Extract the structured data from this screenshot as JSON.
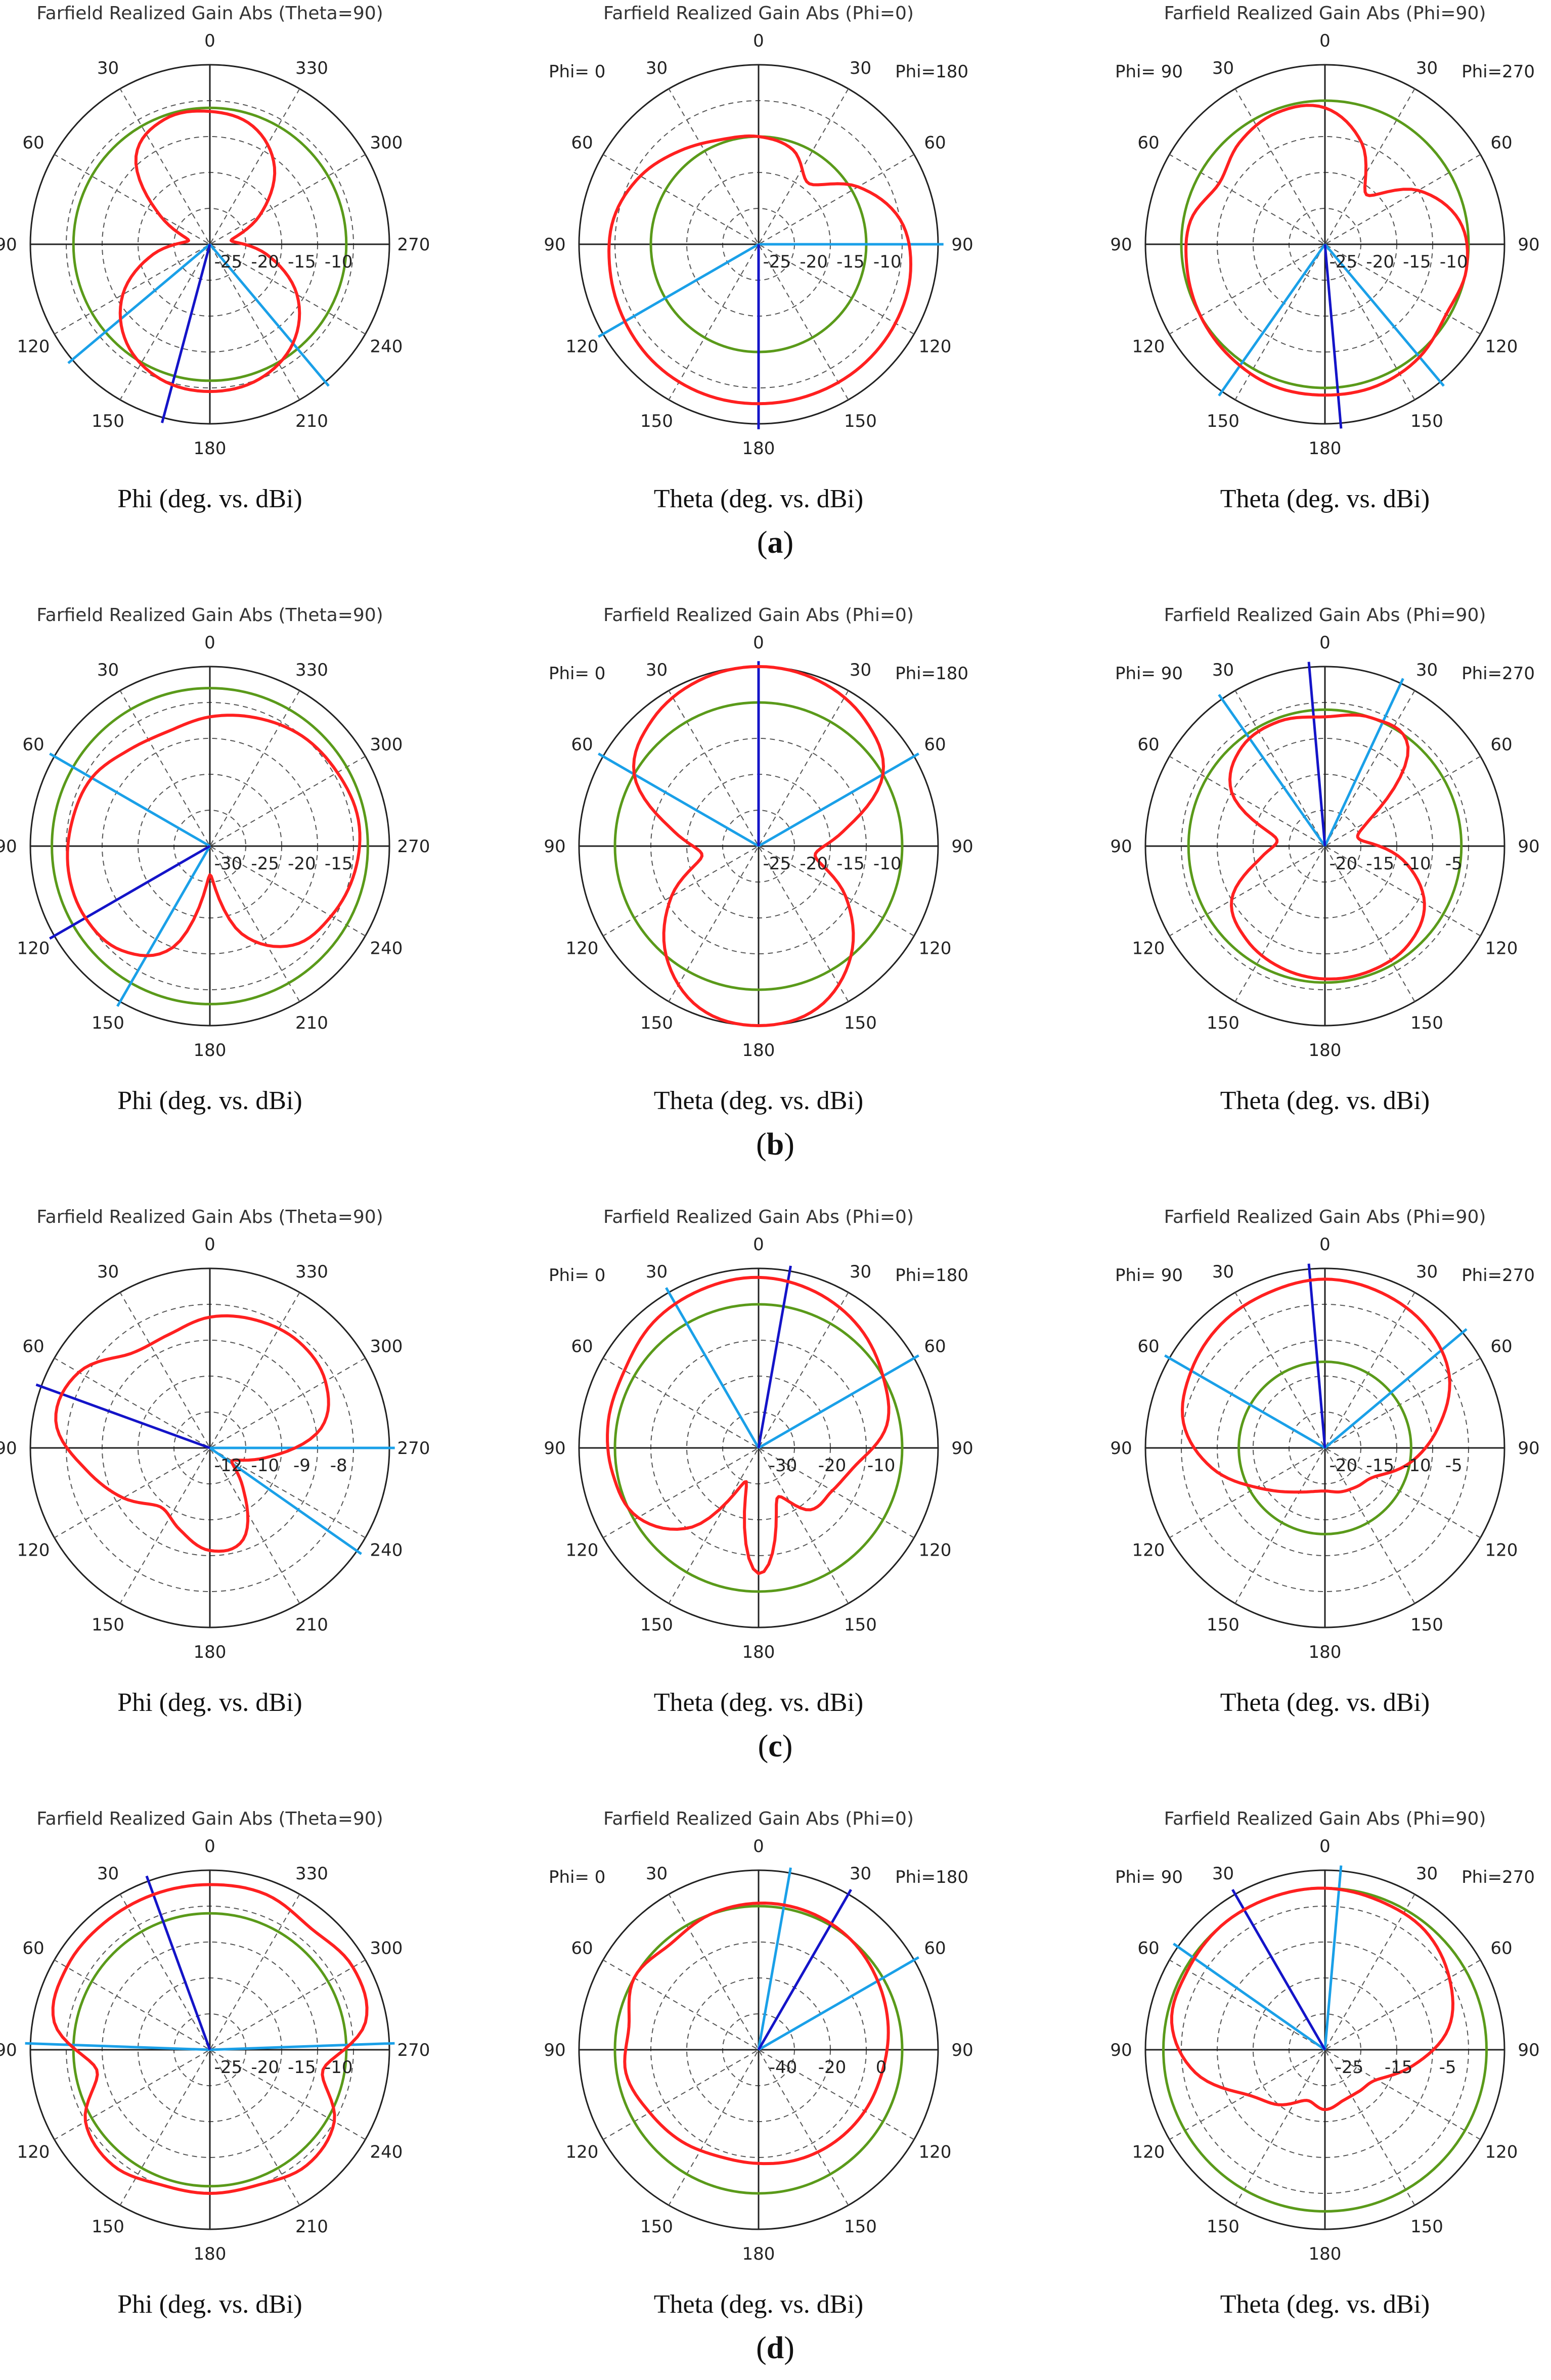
{
  "figure": {
    "rows": [
      {
        "label": "a"
      },
      {
        "label": "b"
      },
      {
        "label": "c"
      },
      {
        "label": "d"
      }
    ]
  },
  "colors": {
    "gain_curve": "#ff2020",
    "reference_circle": "#5a9a1a",
    "main_lobe": "#1414c8",
    "beamwidth_lines": "#1aa0e8",
    "grid": "#555555"
  },
  "chart_data": [
    {
      "type": "polar",
      "row": "a",
      "title": "Farfield Realized Gain Abs (Theta=90)",
      "xlabel": "Phi (deg. vs. dBi)",
      "angle_labels": [
        "0",
        "330",
        "300",
        "270",
        "240",
        "210",
        "180",
        "150",
        "120",
        "90",
        "60",
        "30"
      ],
      "side_labels": [],
      "radial_ticks": [
        "-25",
        "-20",
        "-15",
        "-10"
      ],
      "radial_range_dBi": [
        -30,
        -5
      ],
      "reference_level_dBi": -11,
      "main_lobe_deg": 195,
      "beam_lines_deg": [
        140,
        230
      ],
      "pattern": {
        "angle_deg": [
          0,
          20,
          40,
          60,
          80,
          100,
          120,
          140,
          160,
          180,
          200,
          220,
          240,
          260,
          280,
          300,
          320,
          340
        ],
        "gain_dBi": [
          -11.5,
          -12.5,
          -16,
          -22,
          -27,
          -22,
          -16,
          -12,
          -10,
          -9.5,
          -10,
          -12,
          -16,
          -22,
          -27,
          -22,
          -14,
          -11.5
        ]
      }
    },
    {
      "type": "polar",
      "row": "a",
      "title": "Farfield Realized Gain Abs (Phi=0)",
      "xlabel": "Theta (deg. vs. dBi)",
      "angle_labels": [
        "0",
        "30",
        "60",
        "90",
        "120",
        "150",
        "180",
        "150",
        "120",
        "90",
        "60",
        "30"
      ],
      "side_labels": [
        "Phi= 0",
        "Phi=180"
      ],
      "radial_ticks": [
        "-25",
        "-20",
        "-15",
        "-10"
      ],
      "radial_range_dBi": [
        -30,
        -5
      ],
      "reference_level_dBi": -15,
      "main_lobe_deg": 180,
      "beam_lines_deg": [
        90,
        240
      ],
      "pattern": {
        "angle_deg": [
          0,
          20,
          40,
          60,
          80,
          100,
          120,
          140,
          160,
          180,
          200,
          220,
          240,
          260,
          280,
          300,
          320,
          340
        ],
        "gain_dBi": [
          -15,
          -16,
          -19,
          -14,
          -10,
          -8.5,
          -8,
          -7.8,
          -7.8,
          -7.8,
          -7.8,
          -8,
          -8.5,
          -9,
          -9.5,
          -11,
          -13,
          -14.5
        ]
      }
    },
    {
      "type": "polar",
      "row": "a",
      "title": "Farfield Realized Gain Abs (Phi=90)",
      "xlabel": "Theta (deg. vs. dBi)",
      "angle_labels": [
        "0",
        "30",
        "60",
        "90",
        "120",
        "150",
        "180",
        "150",
        "120",
        "90",
        "60",
        "30"
      ],
      "side_labels": [
        "Phi= 90",
        "Phi=270"
      ],
      "radial_ticks": [
        "-25",
        "-20",
        "-15",
        "-10"
      ],
      "radial_range_dBi": [
        -30,
        -5
      ],
      "reference_level_dBi": -10,
      "main_lobe_deg": 175,
      "beam_lines_deg": [
        140,
        215
      ],
      "pattern": {
        "angle_deg": [
          0,
          20,
          40,
          60,
          80,
          100,
          120,
          140,
          160,
          180,
          200,
          220,
          240,
          260,
          280,
          300,
          320,
          340
        ],
        "gain_dBi": [
          -11,
          -15,
          -21,
          -15,
          -11,
          -10,
          -10.5,
          -9.5,
          -9,
          -9,
          -9,
          -9.5,
          -10,
          -10.5,
          -11,
          -13,
          -11.5,
          -10.5
        ]
      }
    },
    {
      "type": "polar",
      "row": "b",
      "title": "Farfield Realized Gain Abs (Theta=90)",
      "xlabel": "Phi (deg. vs. dBi)",
      "angle_labels": [
        "0",
        "330",
        "300",
        "270",
        "240",
        "210",
        "180",
        "150",
        "120",
        "90",
        "60",
        "30"
      ],
      "side_labels": [],
      "radial_ticks": [
        "-30",
        "-25",
        "-20",
        "-15"
      ],
      "radial_range_dBi": [
        -35,
        -10
      ],
      "reference_level_dBi": -13,
      "main_lobe_deg": 240,
      "beam_lines_deg": [
        210,
        300
      ],
      "pattern": {
        "angle_deg": [
          0,
          20,
          40,
          60,
          80,
          100,
          120,
          140,
          160,
          180,
          200,
          220,
          240,
          260,
          280,
          300,
          320,
          340
        ],
        "gain_dBi": [
          -17,
          -16,
          -15,
          -14.5,
          -14,
          -14.5,
          -15.5,
          -17,
          -22,
          -31,
          -20,
          -16,
          -15,
          -15,
          -15.5,
          -16,
          -17.5,
          -18
        ]
      }
    },
    {
      "type": "polar",
      "row": "b",
      "title": "Farfield Realized Gain Abs (Phi=0)",
      "xlabel": "Theta (deg. vs. dBi)",
      "angle_labels": [
        "0",
        "30",
        "60",
        "90",
        "120",
        "150",
        "180",
        "150",
        "120",
        "90",
        "60",
        "30"
      ],
      "side_labels": [
        "Phi= 0",
        "Phi=180"
      ],
      "radial_ticks": [
        "-25",
        "-20",
        "-15",
        "-10"
      ],
      "radial_range_dBi": [
        -30,
        -5
      ],
      "reference_level_dBi": -10,
      "main_lobe_deg": 0,
      "beam_lines_deg": [
        300,
        60
      ],
      "pattern": {
        "angle_deg": [
          0,
          20,
          40,
          60,
          80,
          100,
          120,
          140,
          160,
          180,
          200,
          220,
          240,
          260,
          280,
          300,
          320,
          340
        ],
        "gain_dBi": [
          -5,
          -5.5,
          -7,
          -10,
          -18,
          -22,
          -16,
          -10,
          -6,
          -5,
          -6,
          -10,
          -16,
          -22,
          -18,
          -10,
          -7,
          -5.5
        ]
      }
    },
    {
      "type": "polar",
      "row": "b",
      "title": "Farfield Realized Gain Abs (Phi=90)",
      "xlabel": "Theta (deg. vs. dBi)",
      "angle_labels": [
        "0",
        "30",
        "60",
        "90",
        "120",
        "150",
        "180",
        "150",
        "120",
        "90",
        "60",
        "30"
      ],
      "side_labels": [
        "Phi= 90",
        "Phi=270"
      ],
      "radial_ticks": [
        "-20",
        "-15",
        "-10",
        "-5"
      ],
      "radial_range_dBi": [
        -25,
        0
      ],
      "reference_level_dBi": -6,
      "main_lobe_deg": 355,
      "beam_lines_deg": [
        325,
        25
      ],
      "pattern": {
        "angle_deg": [
          0,
          20,
          40,
          60,
          80,
          100,
          120,
          140,
          160,
          180,
          200,
          220,
          240,
          260,
          280,
          300,
          320,
          340
        ],
        "gain_dBi": [
          -7,
          -6,
          -7,
          -18,
          -20,
          -14,
          -9,
          -7,
          -6.5,
          -6.5,
          -7,
          -8,
          -10,
          -16,
          -18,
          -10,
          -7,
          -6.5
        ]
      }
    },
    {
      "type": "polar",
      "row": "c",
      "title": "Farfield Realized Gain Abs (Theta=90)",
      "xlabel": "Phi (deg. vs. dBi)",
      "angle_labels": [
        "0",
        "330",
        "300",
        "270",
        "240",
        "210",
        "180",
        "150",
        "120",
        "90",
        "60",
        "30"
      ],
      "side_labels": [],
      "radial_ticks": [
        "-12",
        "-10",
        "-9",
        "-8"
      ],
      "radial_range_dBi": [
        -14,
        -7
      ],
      "reference_level_dBi": null,
      "main_lobe_deg": 290,
      "beam_lines_deg": [
        90,
        125
      ],
      "pattern": {
        "angle_deg": [
          0,
          20,
          40,
          60,
          80,
          100,
          120,
          140,
          160,
          180,
          200,
          220,
          240,
          260,
          280,
          300,
          320,
          340
        ],
        "gain_dBi": [
          -8.9,
          -8.7,
          -8.6,
          -8.8,
          -9.6,
          -11.8,
          -13,
          -12,
          -10.2,
          -10,
          -10.6,
          -11,
          -10.1,
          -9.1,
          -7.9,
          -8.1,
          -9.2,
          -9.3
        ]
      }
    },
    {
      "type": "polar",
      "row": "c",
      "title": "Farfield Realized Gain Abs (Phi=0)",
      "xlabel": "Theta (deg. vs. dBi)",
      "angle_labels": [
        "0",
        "30",
        "60",
        "90",
        "120",
        "150",
        "180",
        "150",
        "120",
        "90",
        "60",
        "30"
      ],
      "side_labels": [
        "Phi= 0",
        "Phi=180"
      ],
      "radial_ticks": [
        "-30",
        "-20",
        "-10"
      ],
      "radial_range_dBi": [
        -40,
        0
      ],
      "reference_level_dBi": -8,
      "main_lobe_deg": 10,
      "beam_lines_deg": [
        330,
        60
      ],
      "pattern": {
        "angle_deg": [
          0,
          20,
          40,
          60,
          80,
          100,
          120,
          140,
          160,
          180,
          200,
          220,
          240,
          260,
          280,
          300,
          320,
          340
        ],
        "gain_dBi": [
          -2,
          -3,
          -5,
          -8,
          -11,
          -18,
          -21,
          -22,
          -28,
          -12,
          -32,
          -17,
          -9,
          -7,
          -6,
          -5.5,
          -3.5,
          -2.5
        ]
      }
    },
    {
      "type": "polar",
      "row": "c",
      "title": "Farfield Realized Gain Abs (Phi=90)",
      "xlabel": "Theta (deg. vs. dBi)",
      "angle_labels": [
        "0",
        "30",
        "60",
        "90",
        "120",
        "150",
        "180",
        "150",
        "120",
        "90",
        "60",
        "30"
      ],
      "side_labels": [
        "Phi= 90",
        "Phi=270"
      ],
      "radial_ticks": [
        "-20",
        "-15",
        "-10",
        "-5"
      ],
      "radial_range_dBi": [
        -25,
        0
      ],
      "reference_level_dBi": -13,
      "main_lobe_deg": 355,
      "beam_lines_deg": [
        300,
        50
      ],
      "pattern": {
        "angle_deg": [
          0,
          20,
          40,
          60,
          80,
          100,
          120,
          140,
          160,
          180,
          200,
          220,
          240,
          260,
          280,
          300,
          320,
          340
        ],
        "gain_dBi": [
          -1.5,
          -2,
          -3,
          -5,
          -9,
          -13,
          -17,
          -18,
          -18.5,
          -19,
          -18.5,
          -17,
          -14,
          -9,
          -5,
          -3.5,
          -2.5,
          -2
        ]
      }
    },
    {
      "type": "polar",
      "row": "d",
      "title": "Farfield Realized Gain Abs (Theta=90)",
      "xlabel": "Phi (deg. vs. dBi)",
      "angle_labels": [
        "0",
        "330",
        "300",
        "270",
        "240",
        "210",
        "180",
        "150",
        "120",
        "90",
        "60",
        "30"
      ],
      "side_labels": [],
      "radial_ticks": [
        "-25",
        "-20",
        "-15",
        "-10"
      ],
      "radial_range_dBi": [
        -30,
        -5
      ],
      "reference_level_dBi": -11,
      "main_lobe_deg": 340,
      "beam_lines_deg": [
        88,
        272
      ],
      "pattern": {
        "angle_deg": [
          0,
          20,
          40,
          60,
          80,
          100,
          120,
          140,
          160,
          180,
          200,
          220,
          240,
          260,
          280,
          300,
          320,
          340
        ],
        "gain_dBi": [
          -7,
          -7,
          -8,
          -7,
          -8,
          -14,
          -10,
          -9,
          -10,
          -10,
          -10,
          -9,
          -10,
          -14,
          -8,
          -7,
          -7,
          -7
        ]
      }
    },
    {
      "type": "polar",
      "row": "d",
      "title": "Farfield Realized Gain Abs (Phi=0)",
      "xlabel": "Theta (deg. vs. dBi)",
      "angle_labels": [
        "0",
        "30",
        "60",
        "90",
        "120",
        "150",
        "180",
        "150",
        "120",
        "90",
        "60",
        "30"
      ],
      "side_labels": [
        "Phi= 0",
        "Phi=180"
      ],
      "radial_ticks": [
        "-40",
        "-20",
        "0"
      ],
      "radial_range_dBi": [
        -50,
        10
      ],
      "reference_level_dBi": -2,
      "main_lobe_deg": 30,
      "beam_lines_deg": [
        10,
        60
      ],
      "pattern": {
        "angle_deg": [
          0,
          20,
          40,
          60,
          80,
          100,
          120,
          140,
          160,
          180,
          200,
          220,
          240,
          260,
          280,
          300,
          320,
          340
        ],
        "gain_dBi": [
          -1,
          -1,
          -2,
          -4,
          -6,
          -8,
          -9,
          -10,
          -11,
          -12,
          -12,
          -10,
          -8,
          -5,
          -6,
          -2,
          -4,
          -2
        ]
      }
    },
    {
      "type": "polar",
      "row": "d",
      "title": "Farfield Realized Gain Abs (Phi=90)",
      "xlabel": "Theta (deg. vs. dBi)",
      "angle_labels": [
        "0",
        "30",
        "60",
        "90",
        "120",
        "150",
        "180",
        "150",
        "120",
        "90",
        "60",
        "30"
      ],
      "side_labels": [
        "Phi= 90",
        "Phi=270"
      ],
      "radial_ticks": [
        "-25",
        "-15",
        "-5"
      ],
      "radial_range_dBi": [
        -30,
        0
      ],
      "reference_level_dBi": -3,
      "main_lobe_deg": 330,
      "beam_lines_deg": [
        305,
        5
      ],
      "pattern": {
        "angle_deg": [
          0,
          20,
          40,
          60,
          80,
          100,
          120,
          140,
          160,
          180,
          200,
          220,
          240,
          260,
          280,
          300,
          320,
          340
        ],
        "gain_dBi": [
          -3,
          -3.5,
          -4,
          -6,
          -9,
          -15,
          -20,
          -21,
          -21,
          -20,
          -21,
          -18,
          -15,
          -8,
          -4,
          -3.5,
          -3,
          -3
        ]
      }
    }
  ]
}
